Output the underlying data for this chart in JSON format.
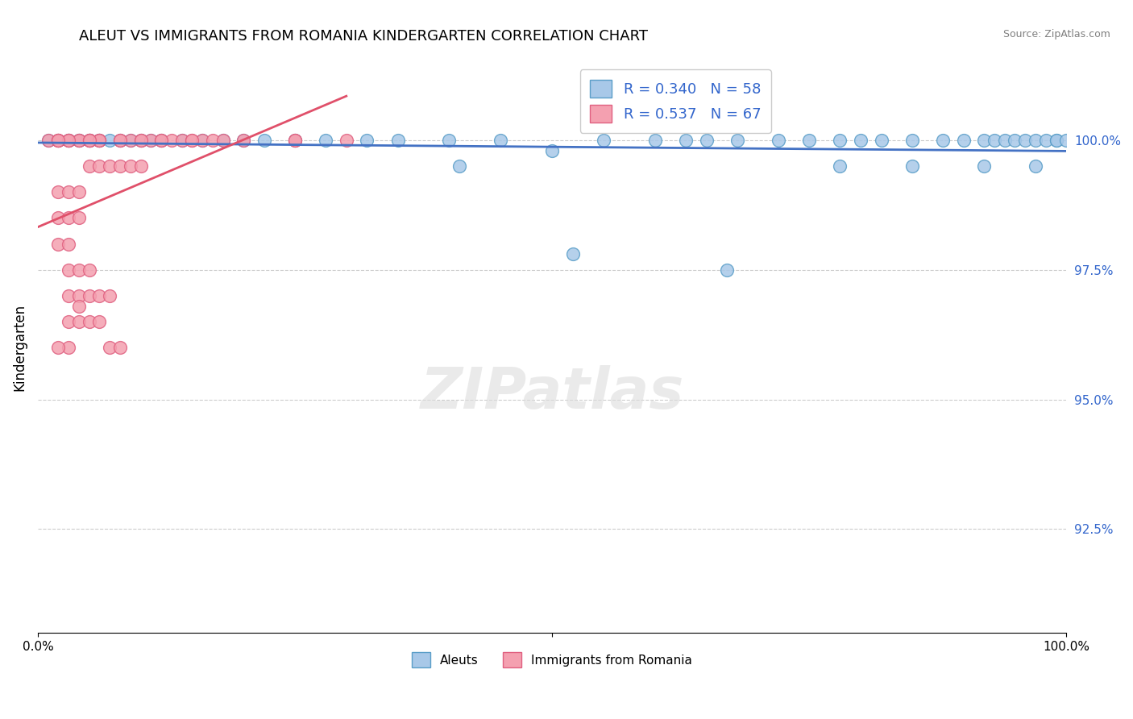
{
  "title": "ALEUT VS IMMIGRANTS FROM ROMANIA KINDERGARTEN CORRELATION CHART",
  "source": "Source: ZipAtlas.com",
  "xlabel": "",
  "ylabel": "Kindergarten",
  "xlim": [
    0,
    100
  ],
  "ylim": [
    90.5,
    101.5
  ],
  "yticks": [
    92.5,
    95.0,
    97.5,
    100.0
  ],
  "ytick_labels": [
    "92.5%",
    "95.0%",
    "97.5%",
    "100.0%"
  ],
  "xticks": [
    0,
    50,
    100
  ],
  "xtick_labels": [
    "0.0%",
    "",
    "100.0%"
  ],
  "series1_label": "Aleuts",
  "series1_color": "#A8C8E8",
  "series1_edge_color": "#5A9EC8",
  "series1_R": 0.34,
  "series1_N": 58,
  "series2_label": "Immigrants from Romania",
  "series2_color": "#F4A0B0",
  "series2_edge_color": "#E06080",
  "series2_R": 0.537,
  "series2_N": 67,
  "trendline1_color": "#4472C4",
  "trendline2_color": "#E0506A",
  "watermark": "ZIPatlas",
  "background_color": "#FFFFFF",
  "aleuts_x": [
    1,
    2,
    3,
    3,
    4,
    4,
    5,
    5,
    6,
    6,
    7,
    8,
    9,
    10,
    11,
    12,
    14,
    16,
    18,
    20,
    22,
    25,
    28,
    32,
    35,
    40,
    41,
    45,
    50,
    52,
    55,
    60,
    63,
    65,
    67,
    68,
    72,
    75,
    78,
    78,
    80,
    82,
    85,
    85,
    88,
    90,
    92,
    92,
    93,
    94,
    95,
    96,
    97,
    97,
    98,
    99,
    99,
    100
  ],
  "aleuts_y": [
    100,
    100,
    100,
    100,
    100,
    100,
    100,
    100,
    100,
    100,
    100,
    100,
    100,
    100,
    100,
    100,
    100,
    100,
    100,
    100,
    100,
    100,
    100,
    100,
    100,
    100,
    99.5,
    100,
    99.8,
    97.8,
    100,
    100,
    100,
    100,
    97.5,
    100,
    100,
    100,
    99.5,
    100,
    100,
    100,
    99.5,
    100,
    100,
    100,
    99.5,
    100,
    100,
    100,
    100,
    100,
    99.5,
    100,
    100,
    100,
    100,
    100
  ],
  "romania_x": [
    1,
    2,
    2,
    2,
    2,
    2,
    2,
    3,
    3,
    3,
    3,
    3,
    3,
    3,
    4,
    4,
    4,
    4,
    4,
    5,
    5,
    5,
    5,
    6,
    6,
    6,
    7,
    7,
    8,
    8,
    9,
    9,
    10,
    10,
    11,
    12,
    13,
    14,
    15,
    16,
    17,
    18,
    3,
    4,
    5,
    6,
    7,
    8,
    25,
    30,
    12,
    8,
    6,
    5,
    4,
    3,
    2,
    15,
    10,
    5,
    3,
    2,
    20,
    25,
    6,
    5,
    4
  ],
  "romania_y": [
    100,
    100,
    100,
    100,
    99,
    98.5,
    98,
    100,
    100,
    99,
    98.5,
    98,
    97.5,
    97,
    100,
    99,
    98.5,
    97.5,
    97,
    100,
    99.5,
    97.5,
    97,
    100,
    99.5,
    97,
    99.5,
    97,
    100,
    99.5,
    100,
    99.5,
    100,
    99.5,
    100,
    100,
    100,
    100,
    100,
    100,
    100,
    100,
    96.5,
    96.5,
    96.5,
    96.5,
    96,
    96,
    100,
    100,
    100,
    100,
    100,
    100,
    100,
    96,
    96,
    100,
    100,
    100,
    100,
    100,
    100,
    100,
    100,
    100,
    96.8
  ]
}
